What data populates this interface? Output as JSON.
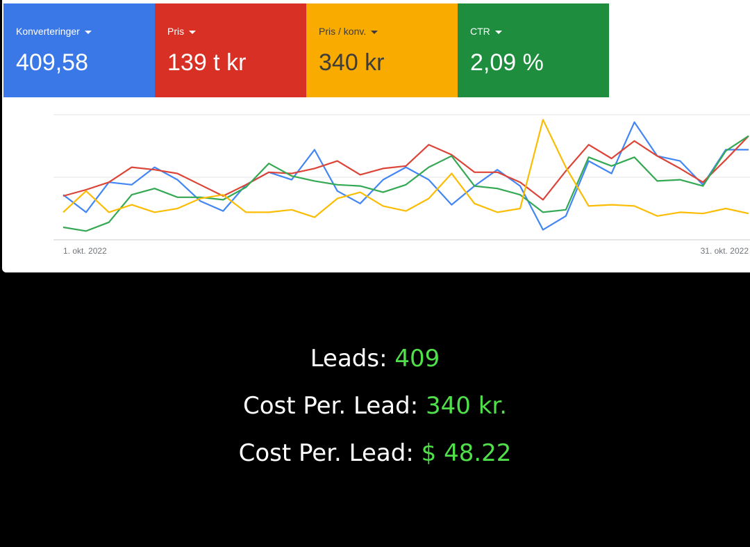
{
  "metrics": [
    {
      "label": "Konverteringer",
      "value": "409,58",
      "color": "#3b78e7"
    },
    {
      "label": "Pris",
      "value": "139 t kr",
      "color": "#d93025"
    },
    {
      "label": "Pris / konv.",
      "value": "340 kr",
      "color": "#f9ab00"
    },
    {
      "label": "CTR",
      "value": "2,09 %",
      "color": "#1e8e3e"
    }
  ],
  "chart_data": {
    "type": "line",
    "categories": [
      "1. okt. 2022",
      null,
      null,
      null,
      null,
      null,
      null,
      null,
      null,
      null,
      null,
      null,
      null,
      null,
      null,
      null,
      null,
      null,
      null,
      null,
      null,
      null,
      null,
      null,
      null,
      null,
      null,
      null,
      null,
      null,
      "31. okt. 2022"
    ],
    "series": [
      {
        "color": "#4285f4",
        "values": [
          36,
          22,
          46,
          44,
          58,
          48,
          31,
          23,
          44,
          54,
          48,
          72,
          39,
          29,
          48,
          58,
          48,
          28,
          43,
          56,
          43,
          8,
          19,
          63,
          53,
          94,
          67,
          63,
          44,
          72,
          72
        ]
      },
      {
        "color": "#db4437",
        "values": [
          35,
          40,
          46,
          58,
          56,
          53,
          44,
          35,
          44,
          54,
          53,
          57,
          63,
          52,
          57,
          59,
          76,
          68,
          54,
          54,
          46,
          32,
          55,
          76,
          65,
          79,
          67,
          57,
          46,
          64,
          83
        ]
      },
      {
        "color": "#34a853",
        "values": [
          10,
          7,
          14,
          36,
          41,
          34,
          34,
          32,
          42,
          61,
          51,
          47,
          44,
          43,
          38,
          44,
          58,
          67,
          43,
          41,
          36,
          22,
          24,
          66,
          59,
          66,
          47,
          48,
          43,
          71,
          83
        ]
      },
      {
        "color": "#fbbc04",
        "values": [
          22,
          39,
          22,
          28,
          22,
          25,
          33,
          36,
          22,
          22,
          24,
          18,
          33,
          38,
          27,
          23,
          33,
          53,
          29,
          22,
          25,
          96,
          58,
          27,
          28,
          27,
          19,
          22,
          21,
          25,
          21
        ]
      }
    ],
    "ylim": [
      0,
      100
    ],
    "yticks": [
      0,
      50,
      100
    ],
    "grid": true
  },
  "summary": [
    {
      "label": "Leads:",
      "value": "409"
    },
    {
      "label": "Cost Per. Lead:",
      "value": "340 kr."
    },
    {
      "label": "Cost Per. Lead:",
      "value": "$ 48.22"
    }
  ]
}
